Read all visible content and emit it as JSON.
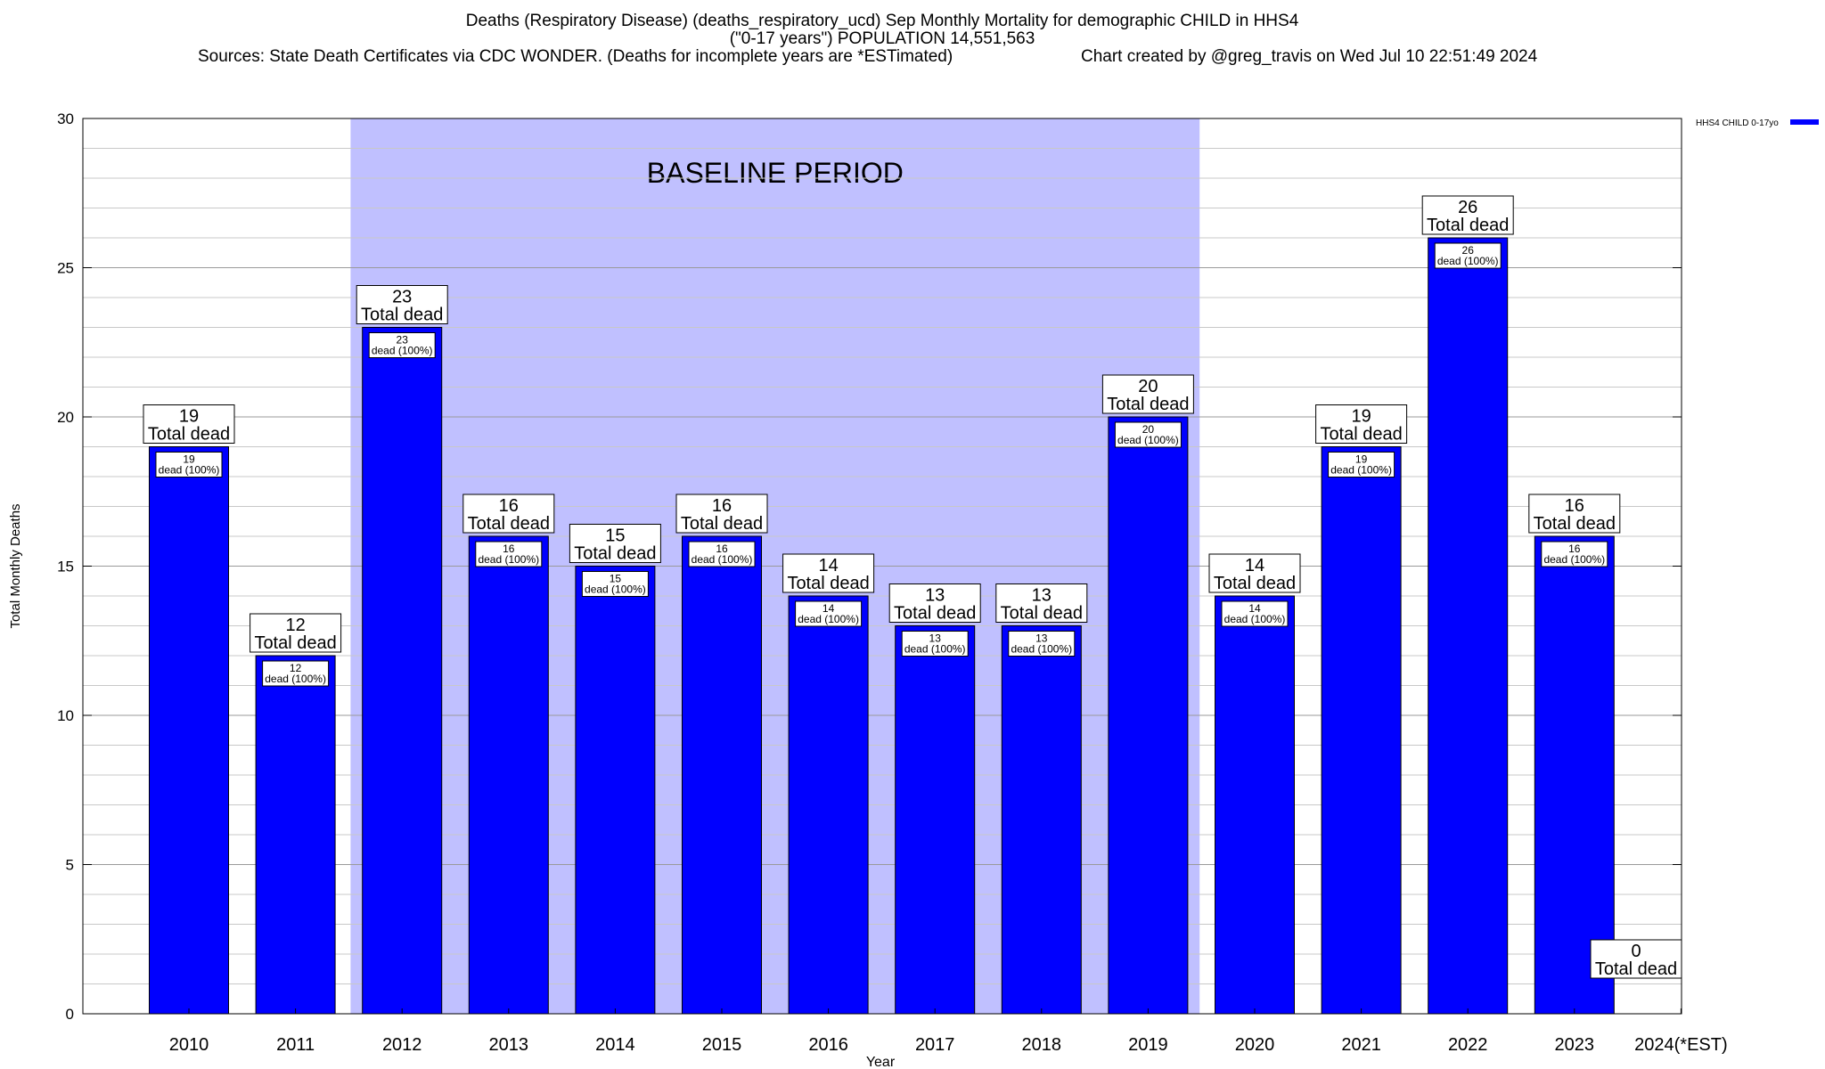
{
  "header": {
    "title_line1": "Deaths (Respiratory Disease) (deaths_respiratory_ucd) Sep Monthly Mortality for demographic CHILD in HHS4",
    "title_line2": "(\"0-17 years\") POPULATION 14,551,563",
    "sources": "Sources: State Death Certificates via CDC WONDER. (Deaths for incomplete years are *ESTimated)",
    "credit": "Chart created by @greg_travis on Wed Jul 10 22:51:49 2024"
  },
  "chart_data": {
    "type": "bar",
    "xlabel": "Year",
    "ylabel": "Total Monthly Deaths",
    "ylim": [
      0,
      30
    ],
    "yticks": [
      0,
      5,
      10,
      15,
      20,
      25,
      30
    ],
    "grid": true,
    "categories": [
      "2010",
      "2011",
      "2012",
      "2013",
      "2014",
      "2015",
      "2016",
      "2017",
      "2018",
      "2019",
      "2020",
      "2021",
      "2022",
      "2023",
      "2024(*EST)"
    ],
    "series": [
      {
        "name": "HHS4 CHILD 0-17yo",
        "color": "#0000ff",
        "values": [
          19,
          12,
          23,
          16,
          15,
          16,
          14,
          13,
          13,
          20,
          14,
          19,
          26,
          16,
          0
        ]
      }
    ],
    "legend": {
      "position": "top-right",
      "label": "HHS4 CHILD 0-17yo"
    },
    "baseline": {
      "label": "BASELINE PERIOD",
      "start": "2012",
      "end": "2019",
      "color": "#c0c0ff"
    },
    "top_label_suffix": "Total dead",
    "inner_label_suffix": "dead (100%)"
  }
}
